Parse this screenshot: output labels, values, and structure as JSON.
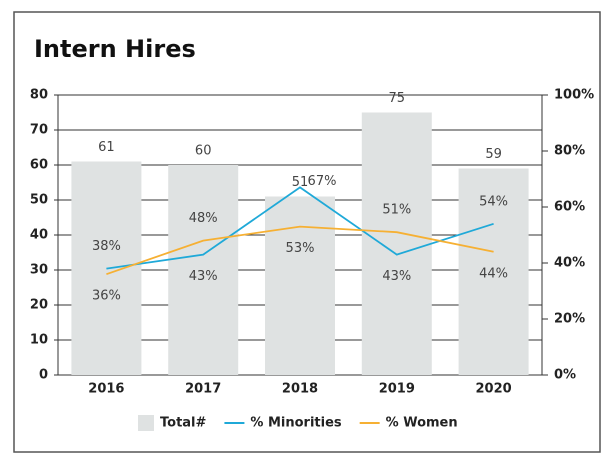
{
  "chart_data": {
    "type": "bar",
    "title": "Intern Hires",
    "categories": [
      "2016",
      "2017",
      "2018",
      "2019",
      "2020"
    ],
    "series": [
      {
        "name": "Total#",
        "type": "bar",
        "color": "#dfe2e2",
        "axis": "y",
        "values": [
          61,
          60,
          51,
          75,
          59
        ]
      },
      {
        "name": "% Minorities",
        "type": "line",
        "color": "#1fa9d8",
        "axis": "y2",
        "values": [
          38,
          43,
          67,
          43,
          54
        ],
        "value_labels": [
          "38%",
          "43%",
          "67%",
          "43%",
          "54%"
        ]
      },
      {
        "name": "% Women",
        "type": "line",
        "color": "#f6b033",
        "axis": "y2",
        "values": [
          36,
          48,
          53,
          51,
          44
        ],
        "value_labels": [
          "36%",
          "48%",
          "53%",
          "51%",
          "44%"
        ]
      }
    ],
    "ylim": [
      0,
      80
    ],
    "yticks": [
      0,
      10,
      20,
      30,
      40,
      50,
      60,
      70,
      80
    ],
    "y2lim": [
      0,
      100
    ],
    "y2ticks": [
      {
        "value": 0,
        "label": "0%"
      },
      {
        "value": 20,
        "label": "20%"
      },
      {
        "value": 40,
        "label": "40%"
      },
      {
        "value": 60,
        "label": "60%"
      },
      {
        "value": 80,
        "label": "80%"
      },
      {
        "value": 100,
        "label": "100%"
      }
    ],
    "grid": true
  }
}
